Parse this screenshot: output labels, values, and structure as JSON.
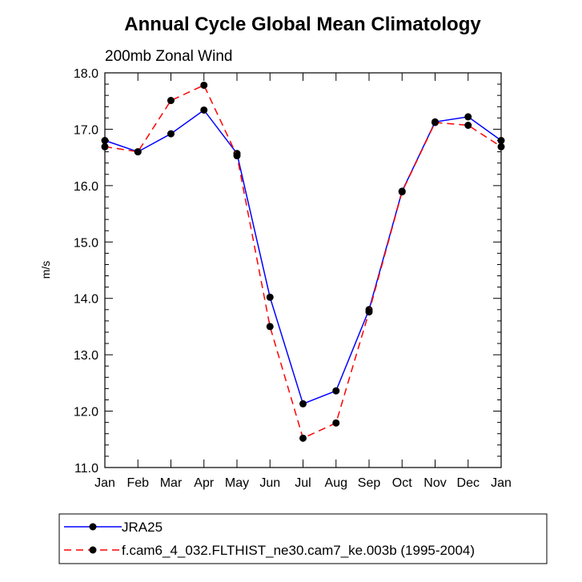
{
  "chart_data": {
    "type": "line",
    "title": "Annual Cycle Global Mean Climatology",
    "subtitle": "200mb Zonal Wind",
    "xlabel": "",
    "ylabel": "m/s",
    "ylim": [
      11.0,
      18.0
    ],
    "yticks": [
      "11.0",
      "12.0",
      "13.0",
      "14.0",
      "15.0",
      "16.0",
      "17.0",
      "18.0"
    ],
    "categories": [
      "Jan",
      "Feb",
      "Mar",
      "Apr",
      "May",
      "Jun",
      "Jul",
      "Aug",
      "Sep",
      "Oct",
      "Nov",
      "Dec",
      "Jan"
    ],
    "grid": false,
    "legend": "bottom",
    "series": [
      {
        "name": "JRA25",
        "color": "#0000ff",
        "line_style": "solid",
        "marker": "dot",
        "values": [
          16.8,
          16.6,
          16.92,
          17.34,
          16.57,
          14.02,
          12.13,
          12.36,
          13.8,
          15.9,
          17.13,
          17.22,
          16.8
        ]
      },
      {
        "name": "f.cam6_4_032.FLTHIST_ne30.cam7_ke.003b (1995-2004)",
        "color": "#ff0000",
        "line_style": "dashed",
        "marker": "dot",
        "values": [
          16.69,
          16.6,
          17.51,
          17.78,
          16.53,
          13.5,
          11.52,
          11.79,
          13.76,
          15.89,
          17.12,
          17.07,
          16.69
        ]
      }
    ]
  }
}
